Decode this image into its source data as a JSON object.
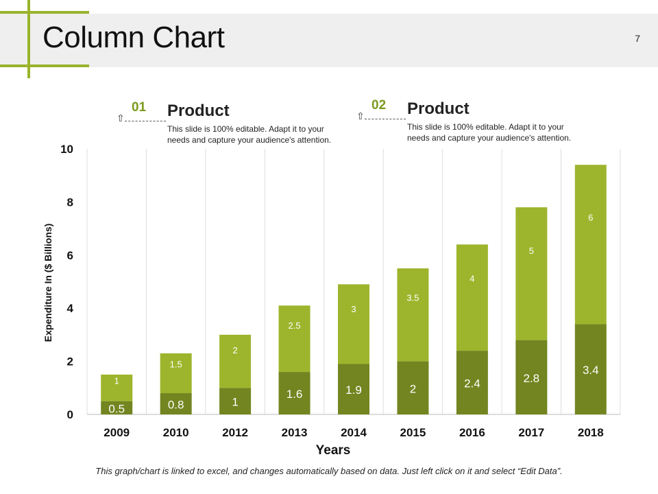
{
  "slide": {
    "title": "Column Chart",
    "page_number": "7"
  },
  "callouts": [
    {
      "number": "01",
      "heading": "Product",
      "text": "This slide is 100% editable. Adapt it to your needs and capture your audience's attention."
    },
    {
      "number": "02",
      "heading": "Product",
      "text": "This slide is 100% editable. Adapt it to your needs and capture your audience's attention."
    }
  ],
  "colors": {
    "accent": "#99b32c",
    "dark_series": "#728520",
    "light_series": "#9db52c",
    "header_bg": "#efefef"
  },
  "footer": {
    "note": "This graph/chart is linked to excel, and changes automatically based on data. Just left click on it and select “Edit Data”."
  },
  "chart_data": {
    "type": "bar",
    "stacked": true,
    "categories": [
      "2009",
      "2010",
      "2012",
      "2013",
      "2014",
      "2015",
      "2016",
      "2017",
      "2018"
    ],
    "series": [
      {
        "values": [
          0.5,
          0.8,
          1,
          1.6,
          1.9,
          2,
          2.4,
          2.8,
          3.4
        ]
      },
      {
        "values": [
          1,
          1.5,
          2,
          2.5,
          3,
          3.5,
          4,
          5,
          6
        ]
      }
    ],
    "title": "",
    "xlabel": "Years",
    "ylabel": "Expenditure In ($ Billions)",
    "ylim": [
      0,
      10
    ],
    "yticks": [
      0,
      2,
      4,
      6,
      8,
      10
    ],
    "grid": "vertical"
  }
}
